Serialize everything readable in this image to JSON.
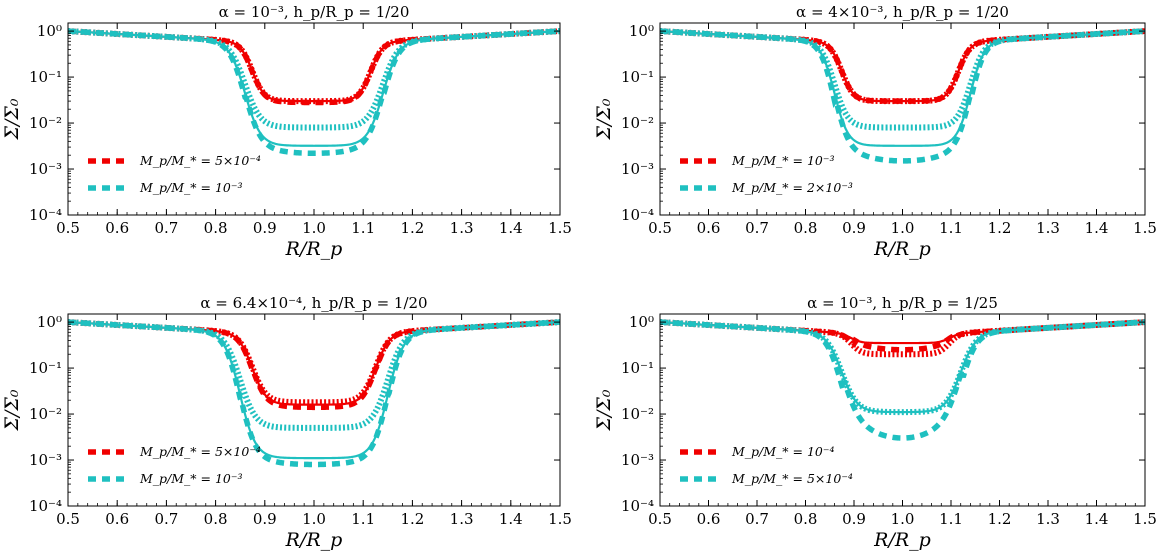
{
  "colors": {
    "red": "#f00000",
    "cyan": "#1fc0c0",
    "axis": "#000000"
  },
  "chart_data": [
    {
      "type": "line",
      "title": "α = 10⁻³, h_p/R_p = 1/20",
      "xlabel": "R/R_p",
      "ylabel": "Σ/Σ₀",
      "xlim": [
        0.5,
        1.5
      ],
      "ylim": [
        0.0001,
        1.5
      ],
      "yscale": "log",
      "grid": false,
      "legend_position": "lower-left",
      "xticks": [
        "0.5",
        "0.6",
        "0.7",
        "0.8",
        "0.9",
        "1.0",
        "1.1",
        "1.2",
        "1.3",
        "1.4",
        "1.5"
      ],
      "yticks": [
        "10⁰",
        "10⁻¹",
        "10⁻²",
        "10⁻³",
        "10⁻⁴"
      ],
      "series": [
        {
          "name": "M_p/M_* = 5×10⁻⁴",
          "color": "red",
          "edges": [
            0.875,
            1.115
          ],
          "wedge": 0.035,
          "floor_solid": 0.03,
          "floor_dashed": 0.028,
          "floor_dotted": 0.03
        },
        {
          "name": "M_p/M_* = 10⁻³",
          "color": "cyan",
          "edges": [
            0.86,
            1.14
          ],
          "wedge": 0.045,
          "floor_solid": 0.0032,
          "floor_dashed": 0.0022,
          "floor_dotted": 0.008
        }
      ]
    },
    {
      "type": "line",
      "title": "α = 4×10⁻³, h_p/R_p = 1/20",
      "xlabel": "R/R_p",
      "ylabel": "Σ/Σ₀",
      "xlim": [
        0.5,
        1.5
      ],
      "ylim": [
        0.0001,
        1.5
      ],
      "yscale": "log",
      "grid": false,
      "legend_position": "lower-left",
      "xticks": [
        "0.5",
        "0.6",
        "0.7",
        "0.8",
        "0.9",
        "1.0",
        "1.1",
        "1.2",
        "1.3",
        "1.4",
        "1.5"
      ],
      "yticks": [
        "10⁰",
        "10⁻¹",
        "10⁻²",
        "10⁻³",
        "10⁻⁴"
      ],
      "series": [
        {
          "name": "M_p/M_* = 10⁻³",
          "color": "red",
          "edges": [
            0.875,
            1.115
          ],
          "wedge": 0.035,
          "floor_solid": 0.03,
          "floor_dashed": 0.03,
          "floor_dotted": 0.03
        },
        {
          "name": "M_p/M_* = 2×10⁻³",
          "color": "cyan",
          "edges": [
            0.86,
            1.14
          ],
          "wedge": 0.04,
          "floor_solid": 0.0032,
          "floor_dashed": 0.0015,
          "floor_dotted": 0.008
        }
      ]
    },
    {
      "type": "line",
      "title": "α = 6.4×10⁻⁴, h_p/R_p = 1/20",
      "xlabel": "R/R_p",
      "ylabel": "Σ/Σ₀",
      "xlim": [
        0.5,
        1.5
      ],
      "ylim": [
        0.0001,
        1.5
      ],
      "yscale": "log",
      "grid": false,
      "legend_position": "lower-left",
      "xticks": [
        "0.5",
        "0.6",
        "0.7",
        "0.8",
        "0.9",
        "1.0",
        "1.1",
        "1.2",
        "1.3",
        "1.4",
        "1.5"
      ],
      "yticks": [
        "10⁰",
        "10⁻¹",
        "10⁻²",
        "10⁻³",
        "10⁻⁴"
      ],
      "series": [
        {
          "name": "M_p/M_* = 5×10⁻⁴",
          "color": "red",
          "edges": [
            0.875,
            1.125
          ],
          "wedge": 0.04,
          "floor_solid": 0.016,
          "floor_dashed": 0.014,
          "floor_dotted": 0.018
        },
        {
          "name": "M_p/M_* = 10⁻³",
          "color": "cyan",
          "edges": [
            0.85,
            1.15
          ],
          "wedge": 0.045,
          "floor_solid": 0.0011,
          "floor_dashed": 0.0008,
          "floor_dotted": 0.005
        }
      ]
    },
    {
      "type": "line",
      "title": "α = 10⁻³, h_p/R_p = 1/25",
      "xlabel": "R/R_p",
      "ylabel": "Σ/Σ₀",
      "xlim": [
        0.5,
        1.5
      ],
      "ylim": [
        0.0001,
        1.5
      ],
      "yscale": "log",
      "grid": false,
      "legend_position": "lower-left",
      "xticks": [
        "0.5",
        "0.6",
        "0.7",
        "0.8",
        "0.9",
        "1.0",
        "1.1",
        "1.2",
        "1.3",
        "1.4",
        "1.5"
      ],
      "yticks": [
        "10⁰",
        "10⁻¹",
        "10⁻²",
        "10⁻³",
        "10⁻⁴"
      ],
      "series": [
        {
          "name": "M_p/M_* = 10⁻⁴",
          "color": "red",
          "edges": [
            0.895,
            1.095
          ],
          "wedge": 0.03,
          "floor_solid": 0.35,
          "floor_dashed": 0.25,
          "floor_dotted": 0.2
        },
        {
          "name": "M_p/M_* = 5×10⁻⁴",
          "color": "cyan",
          "edges": [
            0.875,
            1.12
          ],
          "wedge": 0.045,
          "floor_solid": 0.011,
          "floor_dashed": 0.003,
          "floor_dotted": 0.011
        }
      ]
    }
  ]
}
